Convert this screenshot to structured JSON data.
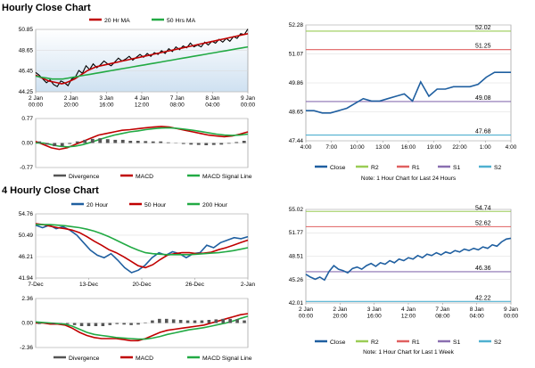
{
  "sections": {
    "hourly_title": "Hourly Close Chart",
    "four_hourly_title": "4 Hourly Close Chart"
  },
  "colors": {
    "price": "#000000",
    "ma_short": "#c00000",
    "ma_long": "#22aa44",
    "close": "#1f5fa0",
    "r2": "#9acc55",
    "r1": "#e06060",
    "s1": "#8a6fb0",
    "s2": "#4fb0d0",
    "divergence": "#555555",
    "macd": "#c00000",
    "signal": "#22aa44",
    "hourly_band_top": "#ffffff",
    "hourly_band_bottom": "#cfe1f1",
    "four_hourly_band_top": "#ffffff",
    "four_hourly_band_bottom": "#cfe1f1"
  },
  "chart_data": [
    {
      "id": "hourly_price",
      "type": "line",
      "ylim": [
        44.25,
        50.85
      ],
      "y_ticks": [
        "50.85",
        "48.65",
        "46.45",
        "44.25"
      ],
      "y_tick_values": [
        50.85,
        48.65,
        46.45,
        44.25
      ],
      "x_ticks": [
        "2 Jan\n00:00",
        "2 Jan\n20:00",
        "3 Jan\n16:00",
        "4 Jan\n12:00",
        "7 Jan\n08:00",
        "8 Jan\n04:00",
        "9 Jan\n00:00"
      ],
      "legend": [
        {
          "label": "20 Hr MA",
          "color_key": "ma_short"
        },
        {
          "label": "50 Hrs MA",
          "color_key": "ma_long"
        }
      ],
      "series": [
        {
          "name": "Close",
          "color_key": "price",
          "values": [
            46.3,
            46.0,
            45.6,
            45.2,
            45.5,
            45.0,
            44.8,
            45.4,
            45.2,
            44.9,
            45.6,
            45.8,
            46.5,
            46.2,
            47.0,
            46.6,
            47.2,
            46.8,
            47.1,
            47.5,
            47.2,
            47.0,
            47.4,
            47.8,
            47.5,
            47.7,
            48.0,
            47.6,
            47.9,
            48.2,
            47.9,
            48.3,
            48.0,
            48.4,
            48.2,
            48.6,
            48.3,
            48.8,
            48.5,
            49.0,
            48.7,
            49.1,
            48.9,
            49.4,
            49.0,
            49.2,
            49.0,
            49.5,
            49.2,
            49.6,
            49.4,
            49.8,
            49.5,
            49.9,
            49.6,
            50.1,
            49.9,
            50.4,
            50.3,
            50.9
          ]
        },
        {
          "name": "20 Hr MA",
          "color_key": "ma_short",
          "values": [
            46.0,
            45.8,
            45.6,
            45.4,
            45.3,
            45.2,
            45.1,
            45.2,
            45.4,
            45.6,
            45.9,
            46.2,
            46.5,
            46.7,
            46.9,
            47.0,
            47.1,
            47.2,
            47.3,
            47.4,
            47.5,
            47.6,
            47.7,
            47.8,
            47.9,
            48.0,
            48.1,
            48.2,
            48.3,
            48.4,
            48.5,
            48.6,
            48.7,
            48.8,
            48.9,
            49.0,
            49.1,
            49.2,
            49.3,
            49.4,
            49.5,
            49.6,
            49.7,
            49.8,
            49.9,
            50.0,
            50.1,
            50.2,
            50.3,
            50.4
          ]
        },
        {
          "name": "50 Hrs MA",
          "color_key": "ma_long",
          "values": [
            45.9,
            45.8,
            45.7,
            45.6,
            45.6,
            45.6,
            45.7,
            45.8,
            45.9,
            46.0,
            46.1,
            46.2,
            46.3,
            46.4,
            46.5,
            46.6,
            46.7,
            46.8,
            46.9,
            47.0,
            47.1,
            47.2,
            47.3,
            47.4,
            47.5,
            47.6,
            47.7,
            47.8,
            47.9,
            48.0,
            48.1,
            48.2,
            48.3,
            48.4,
            48.5,
            48.6,
            48.7,
            48.8,
            48.9,
            49.0
          ]
        }
      ]
    },
    {
      "id": "hourly_macd",
      "type": "line",
      "ylim": [
        -0.77,
        0.77
      ],
      "y_ticks": [
        "0.77",
        "0.00",
        "-0.77"
      ],
      "y_tick_values": [
        0.77,
        0.0,
        -0.77
      ],
      "legend": [
        {
          "label": "Divergence",
          "color_key": "divergence"
        },
        {
          "label": "MACD",
          "color_key": "macd"
        },
        {
          "label": "MACD Signal Line",
          "color_key": "signal"
        }
      ],
      "series": [
        {
          "name": "MACD",
          "color_key": "macd",
          "values": [
            0.05,
            -0.05,
            -0.15,
            -0.2,
            -0.15,
            -0.05,
            0.05,
            0.15,
            0.25,
            0.3,
            0.35,
            0.4,
            0.42,
            0.45,
            0.48,
            0.5,
            0.52,
            0.5,
            0.45,
            0.4,
            0.35,
            0.3,
            0.25,
            0.22,
            0.2,
            0.22,
            0.28,
            0.35
          ]
        },
        {
          "name": "MACD Signal Line",
          "color_key": "signal",
          "values": [
            0.0,
            0.0,
            -0.05,
            -0.1,
            -0.12,
            -0.1,
            -0.05,
            0.02,
            0.1,
            0.18,
            0.25,
            0.3,
            0.35,
            0.38,
            0.42,
            0.45,
            0.47,
            0.48,
            0.46,
            0.43,
            0.4,
            0.36,
            0.32,
            0.28,
            0.25,
            0.24,
            0.25,
            0.28
          ]
        },
        {
          "name": "Divergence",
          "color_key": "divergence",
          "values": [
            0.05,
            -0.05,
            -0.1,
            -0.1,
            -0.03,
            0.05,
            0.1,
            0.13,
            0.15,
            0.12,
            0.1,
            0.1,
            0.07,
            0.07,
            0.06,
            0.05,
            0.05,
            0.02,
            -0.01,
            -0.03,
            -0.05,
            -0.06,
            -0.07,
            -0.06,
            -0.05,
            -0.02,
            0.03,
            0.07
          ]
        }
      ]
    },
    {
      "id": "hourly_levels",
      "type": "line",
      "ylim": [
        47.44,
        52.28
      ],
      "y_ticks": [
        "52.28",
        "51.07",
        "49.86",
        "48.65",
        "47.44"
      ],
      "y_tick_values": [
        52.28,
        51.07,
        49.86,
        48.65,
        47.44
      ],
      "x_ticks": [
        "4:00",
        "7:00",
        "10:00",
        "13:00",
        "16:00",
        "19:00",
        "22:00",
        "1:00",
        "4:00"
      ],
      "levels": [
        {
          "label": "52.02",
          "value": 52.02,
          "color_key": "r2"
        },
        {
          "label": "51.25",
          "value": 51.25,
          "color_key": "r1"
        },
        {
          "label": "49.08",
          "value": 49.08,
          "color_key": "s1"
        },
        {
          "label": "47.68",
          "value": 47.68,
          "color_key": "s2"
        }
      ],
      "series": [
        {
          "name": "Close",
          "color_key": "close",
          "values": [
            48.7,
            48.7,
            48.6,
            48.6,
            48.7,
            48.8,
            49.0,
            49.2,
            49.1,
            49.1,
            49.2,
            49.3,
            49.4,
            49.1,
            49.9,
            49.3,
            49.6,
            49.6,
            49.7,
            49.7,
            49.7,
            49.8,
            50.1,
            50.3,
            50.3,
            50.3
          ]
        }
      ],
      "legend": [
        {
          "label": "Close",
          "color_key": "close"
        },
        {
          "label": "R2",
          "color_key": "r2"
        },
        {
          "label": "R1",
          "color_key": "r1"
        },
        {
          "label": "S1",
          "color_key": "s1"
        },
        {
          "label": "S2",
          "color_key": "s2"
        }
      ],
      "note": "Note: 1 Hour Chart for Last 24 Hours"
    },
    {
      "id": "four_hourly_price",
      "type": "line",
      "ylim": [
        41.94,
        54.76
      ],
      "y_ticks": [
        "54.76",
        "50.49",
        "46.21",
        "41.94"
      ],
      "y_tick_values": [
        54.76,
        50.49,
        46.21,
        41.94
      ],
      "x_ticks": [
        "7-Dec",
        "13-Dec",
        "20-Dec",
        "26-Dec",
        "2-Jan"
      ],
      "legend": [
        {
          "label": "20 Hour",
          "color_key": "close"
        },
        {
          "label": "50 Hour",
          "color_key": "ma_short"
        },
        {
          "label": "200 Hour",
          "color_key": "ma_long"
        }
      ],
      "series": [
        {
          "name": "20 Hour",
          "color_key": "close",
          "values": [
            52.5,
            52.0,
            52.5,
            51.8,
            52.2,
            51.5,
            50.5,
            49.0,
            47.5,
            46.5,
            46.0,
            46.8,
            45.5,
            44.0,
            43.0,
            43.5,
            44.5,
            46.0,
            47.0,
            46.5,
            47.2,
            46.8,
            46.0,
            46.8,
            47.0,
            48.5,
            48.0,
            49.0,
            49.5,
            50.0,
            49.8,
            50.2
          ]
        },
        {
          "name": "50 Hour",
          "color_key": "ma_short",
          "values": [
            52.8,
            52.6,
            52.3,
            52.0,
            51.8,
            51.5,
            51.0,
            50.2,
            49.3,
            48.5,
            47.6,
            47.0,
            46.2,
            45.3,
            44.4,
            44.0,
            44.6,
            45.6,
            46.5,
            46.8,
            47.0,
            47.0,
            46.8,
            46.9,
            47.1,
            47.6,
            48.0,
            48.5,
            49.0,
            49.5
          ]
        },
        {
          "name": "200 Hour",
          "color_key": "ma_long",
          "values": [
            52.6,
            52.6,
            52.6,
            52.5,
            52.4,
            52.2,
            52.0,
            51.7,
            51.3,
            50.8,
            50.2,
            49.5,
            48.8,
            48.1,
            47.5,
            47.0,
            46.8,
            46.7,
            46.6,
            46.6,
            46.6,
            46.6,
            46.7,
            46.8,
            46.9,
            47.0,
            47.2,
            47.4,
            47.7,
            48.0
          ]
        }
      ]
    },
    {
      "id": "four_hourly_macd",
      "type": "line",
      "ylim": [
        -2.36,
        2.36
      ],
      "y_ticks": [
        "2.36",
        "0.00",
        "-2.36"
      ],
      "y_tick_values": [
        2.36,
        0.0,
        -2.36
      ],
      "legend": [
        {
          "label": "Divergence",
          "color_key": "divergence"
        },
        {
          "label": "MACD",
          "color_key": "macd"
        },
        {
          "label": "MACD Signal Line",
          "color_key": "signal"
        }
      ],
      "series": [
        {
          "name": "MACD",
          "color_key": "macd",
          "values": [
            0.0,
            0.0,
            -0.1,
            -0.1,
            -0.2,
            -0.5,
            -0.9,
            -1.2,
            -1.4,
            -1.5,
            -1.5,
            -1.5,
            -1.6,
            -1.7,
            -1.7,
            -1.5,
            -1.2,
            -0.9,
            -0.7,
            -0.6,
            -0.5,
            -0.4,
            -0.3,
            -0.2,
            0.0,
            0.2,
            0.4,
            0.6,
            0.8,
            0.9
          ]
        },
        {
          "name": "MACD Signal Line",
          "color_key": "signal",
          "values": [
            0.1,
            0.05,
            0.0,
            -0.05,
            -0.1,
            -0.3,
            -0.6,
            -0.9,
            -1.1,
            -1.2,
            -1.3,
            -1.4,
            -1.45,
            -1.5,
            -1.55,
            -1.55,
            -1.45,
            -1.3,
            -1.1,
            -0.95,
            -0.8,
            -0.65,
            -0.55,
            -0.45,
            -0.3,
            -0.15,
            0.0,
            0.2,
            0.45,
            0.65
          ]
        },
        {
          "name": "Divergence",
          "color_key": "divergence",
          "values": [
            -0.1,
            -0.05,
            -0.1,
            -0.05,
            -0.1,
            -0.2,
            -0.3,
            -0.3,
            -0.3,
            -0.3,
            -0.2,
            -0.1,
            -0.15,
            -0.2,
            -0.15,
            0.05,
            0.25,
            0.4,
            0.4,
            0.35,
            0.3,
            0.25,
            0.25,
            0.25,
            0.3,
            0.35,
            0.4,
            0.4,
            0.35,
            0.25
          ]
        }
      ]
    },
    {
      "id": "four_hourly_levels",
      "type": "line",
      "ylim": [
        42.01,
        55.02
      ],
      "y_ticks": [
        "55.02",
        "51.77",
        "48.51",
        "45.26",
        "42.01"
      ],
      "y_tick_values": [
        55.02,
        51.77,
        48.51,
        45.26,
        42.01
      ],
      "x_ticks": [
        "2 Jan\n00:00",
        "2 Jan\n20:00",
        "3 Jan\n16:00",
        "4 Jan\n12:00",
        "7 Jan\n08:00",
        "8 Jan\n04:00",
        "9 Jan\n00:00"
      ],
      "levels": [
        {
          "label": "54.74",
          "value": 54.74,
          "color_key": "r2"
        },
        {
          "label": "52.62",
          "value": 52.62,
          "color_key": "r1"
        },
        {
          "label": "46.36",
          "value": 46.36,
          "color_key": "s1"
        },
        {
          "label": "42.22",
          "value": 42.22,
          "color_key": "s2"
        }
      ],
      "series": [
        {
          "name": "Close",
          "color_key": "close",
          "values": [
            46.0,
            45.6,
            45.3,
            45.6,
            45.2,
            46.4,
            47.2,
            46.7,
            46.5,
            46.2,
            46.8,
            47.0,
            46.7,
            47.2,
            47.5,
            47.1,
            47.6,
            47.4,
            47.9,
            47.6,
            48.1,
            47.9,
            48.3,
            48.1,
            48.6,
            48.3,
            48.8,
            48.6,
            49.0,
            48.7,
            49.1,
            48.9,
            49.3,
            49.1,
            49.5,
            49.3,
            49.6,
            49.4,
            49.8,
            49.6,
            50.1,
            49.9,
            50.5,
            50.9,
            51.0
          ]
        }
      ],
      "legend": [
        {
          "label": "Close",
          "color_key": "close"
        },
        {
          "label": "R2",
          "color_key": "r2"
        },
        {
          "label": "R1",
          "color_key": "r1"
        },
        {
          "label": "S1",
          "color_key": "s1"
        },
        {
          "label": "S2",
          "color_key": "s2"
        }
      ],
      "note": "Note: 1 Hour Chart for Last 1 Week"
    }
  ]
}
